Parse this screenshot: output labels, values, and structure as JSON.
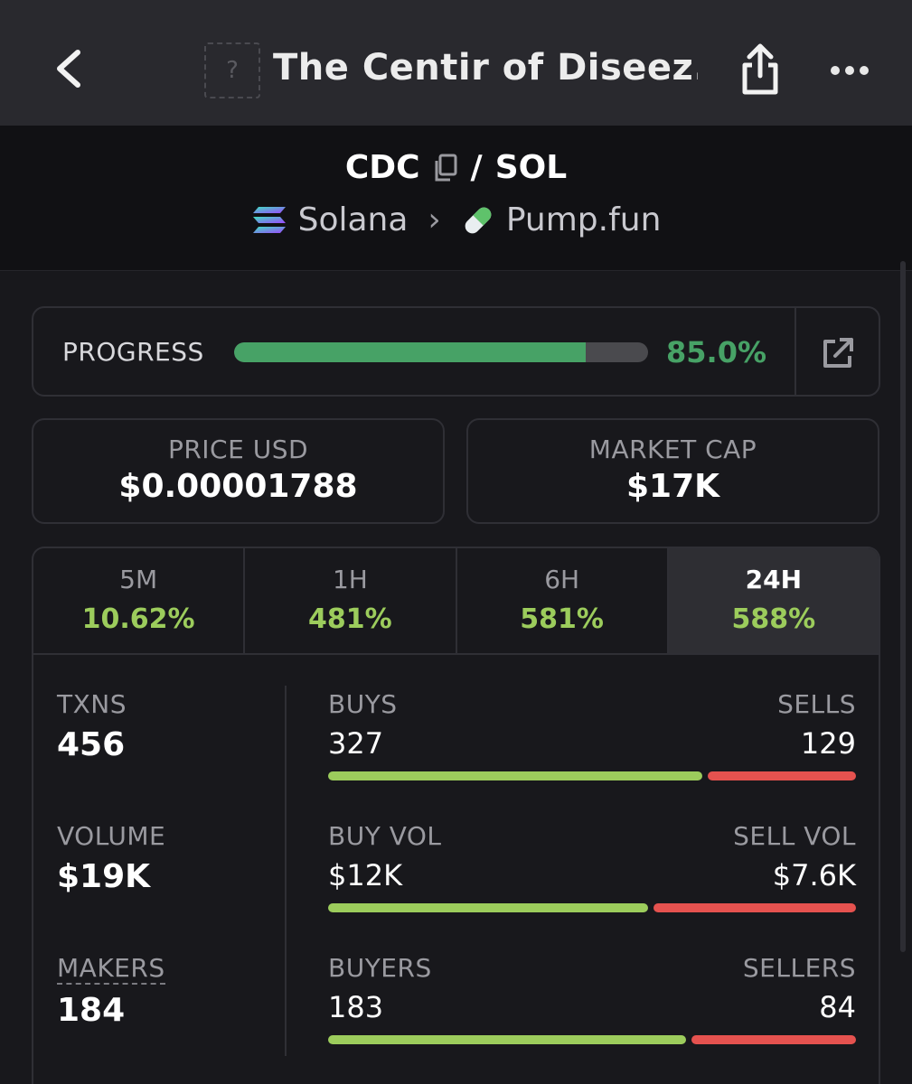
{
  "header": {
    "title": "The Centir of Diseez...",
    "thumb_placeholder": "?",
    "icons": [
      "chevron-left-icon",
      "share-icon",
      "more-icon"
    ]
  },
  "pair": {
    "base": "CDC",
    "separator": "/",
    "quote": "SOL",
    "chain": "Solana",
    "chevron": "›",
    "dex": "Pump.fun"
  },
  "progress": {
    "label": "PROGRESS",
    "value_text": "85.0%",
    "fraction": 0.85,
    "color": "#47a266"
  },
  "price_usd": {
    "label": "PRICE USD",
    "value": "$0.00001788"
  },
  "market_cap": {
    "label": "MARKET CAP",
    "value": "$17K"
  },
  "tabs": [
    {
      "label": "5M",
      "change": "10.62%",
      "active": false
    },
    {
      "label": "1H",
      "change": "481%",
      "active": false
    },
    {
      "label": "6H",
      "change": "581%",
      "active": false
    },
    {
      "label": "24H",
      "change": "588%",
      "active": true
    }
  ],
  "stats": {
    "txns": {
      "label": "TXNS",
      "value": "456"
    },
    "volume": {
      "label": "VOLUME",
      "value": "$19K"
    },
    "makers": {
      "label": "MAKERS",
      "value": "184"
    }
  },
  "splits": {
    "txns": {
      "left_label": "BUYS",
      "right_label": "SELLS",
      "left_value": "327",
      "right_value": "129",
      "buy_fraction": 0.717
    },
    "volume": {
      "left_label": "BUY VOL",
      "right_label": "SELL VOL",
      "left_value": "$12K",
      "right_value": "$7.6K",
      "buy_fraction": 0.612
    },
    "makers": {
      "left_label": "BUYERS",
      "right_label": "SELLERS",
      "left_value": "183",
      "right_value": "84",
      "buy_fraction": 0.685
    }
  },
  "colors": {
    "positive": "#9ccc5c",
    "buy_bar": "#9ccc5c",
    "sell_bar": "#e5524f",
    "progress_green": "#47a266"
  }
}
